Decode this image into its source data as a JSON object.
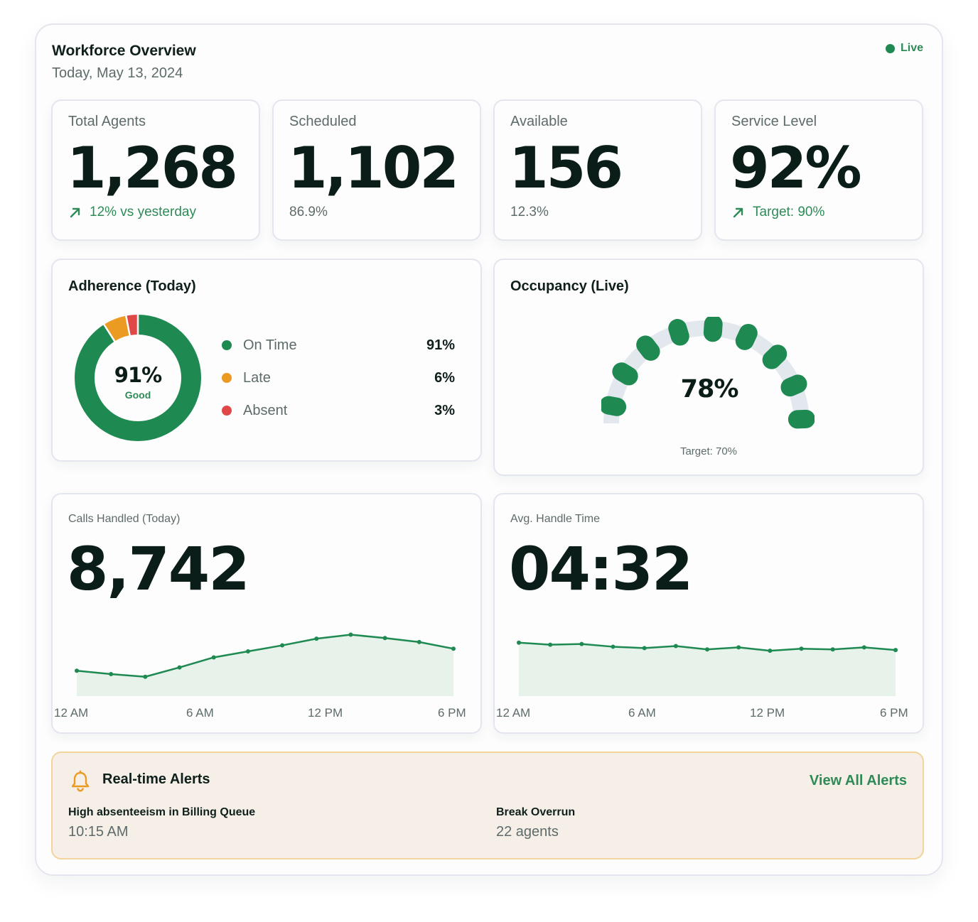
{
  "header": {
    "title": "Workforce Overview",
    "date": "Today, May 13, 2024",
    "live_label": "Live"
  },
  "stats": [
    {
      "label": "Total Agents",
      "value": "1,268",
      "sub": "12% vs yesterday",
      "trend_icon": "arrow-up-right-icon"
    },
    {
      "label": "Scheduled",
      "value": "1,102",
      "sub": "86.9%"
    },
    {
      "label": "Available",
      "value": "156",
      "sub": "12.3%"
    },
    {
      "label": "Service Level",
      "value": "92%",
      "sub": "Target: 90%",
      "trend_icon": "arrow-up-right-icon"
    }
  ],
  "adherence": {
    "title": "Adherence (Today)",
    "center_value": "91%",
    "center_label": "Good",
    "segments": [
      {
        "name": "On Time",
        "pct_label": "91%",
        "value": 91,
        "color": "#1e8a52"
      },
      {
        "name": "Late",
        "pct_label": "6%",
        "value": 6,
        "color": "#eb9a22"
      },
      {
        "name": "Absent",
        "pct_label": "3%",
        "value": 3,
        "color": "#e04848"
      }
    ]
  },
  "occupancy": {
    "title": "Occupancy (Live)",
    "value_label": "78%",
    "value": 78,
    "target_label": "Target: 70%",
    "fill_color": "#1e8a52",
    "track_color": "#e3e7ee"
  },
  "calls": {
    "label": "Calls Handled (Today)",
    "value": "8,742",
    "axis_labels": [
      "12 AM",
      "6 AM",
      "12 PM",
      "6 PM"
    ]
  },
  "aht": {
    "label": "Avg. Handle Time",
    "value": "04:32",
    "axis_labels": [
      "12 AM",
      "6 AM",
      "12 PM",
      "6 PM"
    ]
  },
  "chart_data": [
    {
      "type": "area",
      "title": "Calls Handled (Today)",
      "x": [
        0,
        1,
        2,
        3,
        4,
        5,
        6,
        7,
        8,
        9,
        10,
        11
      ],
      "tick_labels": [
        "12 AM",
        "6 AM",
        "12 PM",
        "6 PM"
      ],
      "series": [
        {
          "values": [
            38,
            33,
            29,
            43,
            58,
            67,
            76,
            86,
            92,
            87,
            81,
            71
          ]
        }
      ],
      "ylim": [
        0,
        100
      ],
      "grid": false,
      "color": "#1e8a52"
    },
    {
      "type": "area",
      "title": "Avg. Handle Time",
      "x": [
        0,
        1,
        2,
        3,
        4,
        5,
        6,
        7,
        8,
        9,
        10,
        11,
        12
      ],
      "tick_labels": [
        "12 AM",
        "6 AM",
        "12 PM",
        "6 PM"
      ],
      "series": [
        {
          "values": [
            80,
            77,
            78,
            74,
            72,
            75,
            70,
            73,
            68,
            71,
            70,
            73,
            69
          ]
        }
      ],
      "ylim": [
        0,
        100
      ],
      "grid": false,
      "color": "#1e8a52"
    }
  ],
  "alerts": {
    "title": "Real-time Alerts",
    "icon": "bell-icon",
    "view_all": "View All Alerts",
    "items": [
      {
        "name": "High absenteeism in Billing Queue",
        "meta": "10:15 AM"
      },
      {
        "name": "Break Overrun",
        "meta": "22 agents"
      }
    ]
  }
}
